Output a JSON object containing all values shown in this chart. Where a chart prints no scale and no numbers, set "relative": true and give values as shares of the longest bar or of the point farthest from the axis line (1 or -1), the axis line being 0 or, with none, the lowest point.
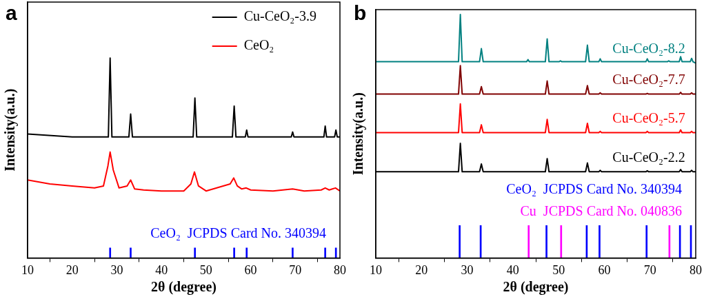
{
  "chart_data": [
    {
      "type": "line",
      "title": "a",
      "xlabel": "2θ (degree)",
      "ylabel": "Intensity(a.u.)",
      "relative": true,
      "xlim": [
        10,
        80
      ],
      "xticks": [
        10,
        20,
        30,
        40,
        50,
        60,
        70,
        80
      ],
      "grid": false,
      "legend": "top right",
      "marker": "none",
      "line_style": "solid",
      "series": [
        {
          "name": "Cu-CeO₂-3.9",
          "color": "#000000",
          "x": [
            10,
            20,
            28.1,
            28.5,
            28.9,
            32.7,
            33.1,
            33.5,
            47.1,
            47.5,
            47.9,
            55.9,
            56.3,
            56.7,
            58.8,
            59.1,
            59.4,
            69.1,
            69.4,
            69.7,
            76.4,
            76.7,
            77.0,
            78.8,
            79.1,
            79.4,
            80
          ],
          "values": [
            0.62,
            0.605,
            0.605,
            1,
            0.605,
            0.605,
            0.72,
            0.605,
            0.605,
            0.8,
            0.605,
            0.605,
            0.76,
            0.605,
            0.605,
            0.64,
            0.605,
            0.605,
            0.63,
            0.605,
            0.605,
            0.66,
            0.605,
            0.605,
            0.64,
            0.605,
            0.605
          ]
        },
        {
          "name": "CeO₂",
          "color": "#ff0000",
          "x": [
            10,
            15,
            20,
            25,
            27,
            28,
            28.5,
            29.2,
            30.5,
            32.3,
            33.1,
            34,
            36,
            40,
            45,
            46.6,
            47.4,
            48.3,
            50,
            55.4,
            56.2,
            57,
            58,
            59,
            60,
            65,
            69.4,
            72,
            75.8,
            76.7,
            77.6,
            78.3,
            79,
            80
          ],
          "values": [
            0.39,
            0.37,
            0.36,
            0.35,
            0.36,
            0.46,
            0.53,
            0.44,
            0.35,
            0.36,
            0.39,
            0.345,
            0.34,
            0.335,
            0.335,
            0.37,
            0.43,
            0.36,
            0.335,
            0.37,
            0.4,
            0.36,
            0.345,
            0.35,
            0.34,
            0.335,
            0.345,
            0.335,
            0.34,
            0.35,
            0.34,
            0.345,
            0.35,
            0.335
          ]
        },
        {
          "type": "bar",
          "name": "CeO₂  JCPDS Card No. 340394",
          "color": "#0000ff",
          "x": [
            28.5,
            33.1,
            47.5,
            56.3,
            59.1,
            69.4,
            76.7,
            79.1
          ],
          "values": [
            0.05,
            0.05,
            0.05,
            0.05,
            0.05,
            0.05,
            0.05,
            0.05
          ]
        }
      ]
    },
    {
      "type": "line",
      "title": "b",
      "xlabel": "2θ (degree)",
      "ylabel": "Intensity(a.u.)",
      "relative": true,
      "xlim": [
        10,
        80
      ],
      "xticks": [
        10,
        20,
        30,
        40,
        50,
        60,
        70,
        80
      ],
      "grid": false,
      "marker": "none",
      "line_style": "solid",
      "series": [
        {
          "name": "Cu-CeO₂-8.2",
          "color": "#008080",
          "x": [
            10,
            20,
            28.1,
            28.5,
            28.9,
            32.7,
            33.1,
            33.5,
            43.0,
            43.3,
            43.6,
            47.1,
            47.5,
            47.9,
            50.1,
            50.4,
            50.7,
            55.9,
            56.3,
            56.7,
            58.8,
            59.1,
            59.4,
            69.1,
            69.4,
            69.7,
            73.8,
            74.1,
            74.4,
            76.4,
            76.7,
            77.0,
            78.8,
            79.1,
            79.4,
            80
          ],
          "values": [
            0.806,
            0.806,
            0.806,
            1,
            0.806,
            0.806,
            0.86,
            0.806,
            0.806,
            0.815,
            0.806,
            0.806,
            0.9,
            0.806,
            0.806,
            0.81,
            0.806,
            0.806,
            0.874,
            0.806,
            0.806,
            0.818,
            0.806,
            0.806,
            0.818,
            0.806,
            0.806,
            0.81,
            0.806,
            0.806,
            0.827,
            0.806,
            0.806,
            0.82,
            0.806,
            0.8
          ]
        },
        {
          "name": "Cu-CeO₂-7.7",
          "color": "#800000",
          "x": [
            10,
            20,
            28.1,
            28.5,
            28.9,
            32.7,
            33.1,
            33.5,
            47.1,
            47.5,
            47.9,
            55.9,
            56.3,
            56.7,
            58.8,
            59.1,
            59.4,
            69.1,
            69.4,
            69.7,
            76.4,
            76.7,
            77.0,
            78.8,
            79.1,
            79.4,
            80
          ],
          "values": [
            0.673,
            0.673,
            0.673,
            0.79,
            0.673,
            0.673,
            0.704,
            0.673,
            0.673,
            0.727,
            0.673,
            0.673,
            0.708,
            0.673,
            0.673,
            0.678,
            0.673,
            0.673,
            0.676,
            0.673,
            0.673,
            0.68,
            0.673,
            0.673,
            0.678,
            0.673,
            0.673
          ]
        },
        {
          "name": "Cu-CeO₂-5.7",
          "color": "#ff0000",
          "x": [
            10,
            20,
            28.1,
            28.5,
            28.9,
            32.7,
            33.1,
            33.5,
            47.1,
            47.5,
            47.9,
            55.9,
            56.3,
            56.7,
            58.8,
            59.1,
            59.4,
            69.1,
            69.4,
            69.7,
            76.4,
            76.7,
            77.0,
            78.8,
            79.1,
            79.4,
            80
          ],
          "values": [
            0.515,
            0.515,
            0.515,
            0.633,
            0.515,
            0.515,
            0.547,
            0.515,
            0.515,
            0.569,
            0.515,
            0.515,
            0.553,
            0.515,
            0.515,
            0.52,
            0.515,
            0.515,
            0.52,
            0.515,
            0.515,
            0.526,
            0.515,
            0.515,
            0.52,
            0.515,
            0.515
          ]
        },
        {
          "name": "Cu-CeO₂-2.2",
          "color": "#000000",
          "x": [
            10,
            20,
            28.1,
            28.5,
            28.9,
            32.7,
            33.1,
            33.5,
            47.1,
            47.5,
            47.9,
            55.9,
            56.3,
            56.7,
            58.8,
            59.1,
            59.4,
            69.1,
            69.4,
            69.7,
            76.4,
            76.7,
            77.0,
            78.8,
            79.1,
            79.4,
            80
          ],
          "values": [
            0.354,
            0.354,
            0.354,
            0.471,
            0.354,
            0.354,
            0.386,
            0.354,
            0.354,
            0.408,
            0.354,
            0.354,
            0.39,
            0.354,
            0.354,
            0.36,
            0.354,
            0.354,
            0.358,
            0.354,
            0.354,
            0.363,
            0.354,
            0.354,
            0.36,
            0.354,
            0.354
          ]
        },
        {
          "type": "bar",
          "name": "CeO₂  JCPDS Card No. 340394",
          "color": "#0000ff",
          "x": [
            28.5,
            33.1,
            47.5,
            56.3,
            59.1,
            69.4,
            76.7,
            79.1
          ],
          "values": [
            0.133,
            0.133,
            0.133,
            0.133,
            0.133,
            0.133,
            0.133,
            0.133
          ]
        },
        {
          "type": "bar",
          "name": "Cu  JCPDS Card No. 040836",
          "color": "#ff00ff",
          "x": [
            43.3,
            50.4,
            74.1
          ],
          "values": [
            0.133,
            0.133,
            0.133
          ]
        }
      ]
    }
  ]
}
